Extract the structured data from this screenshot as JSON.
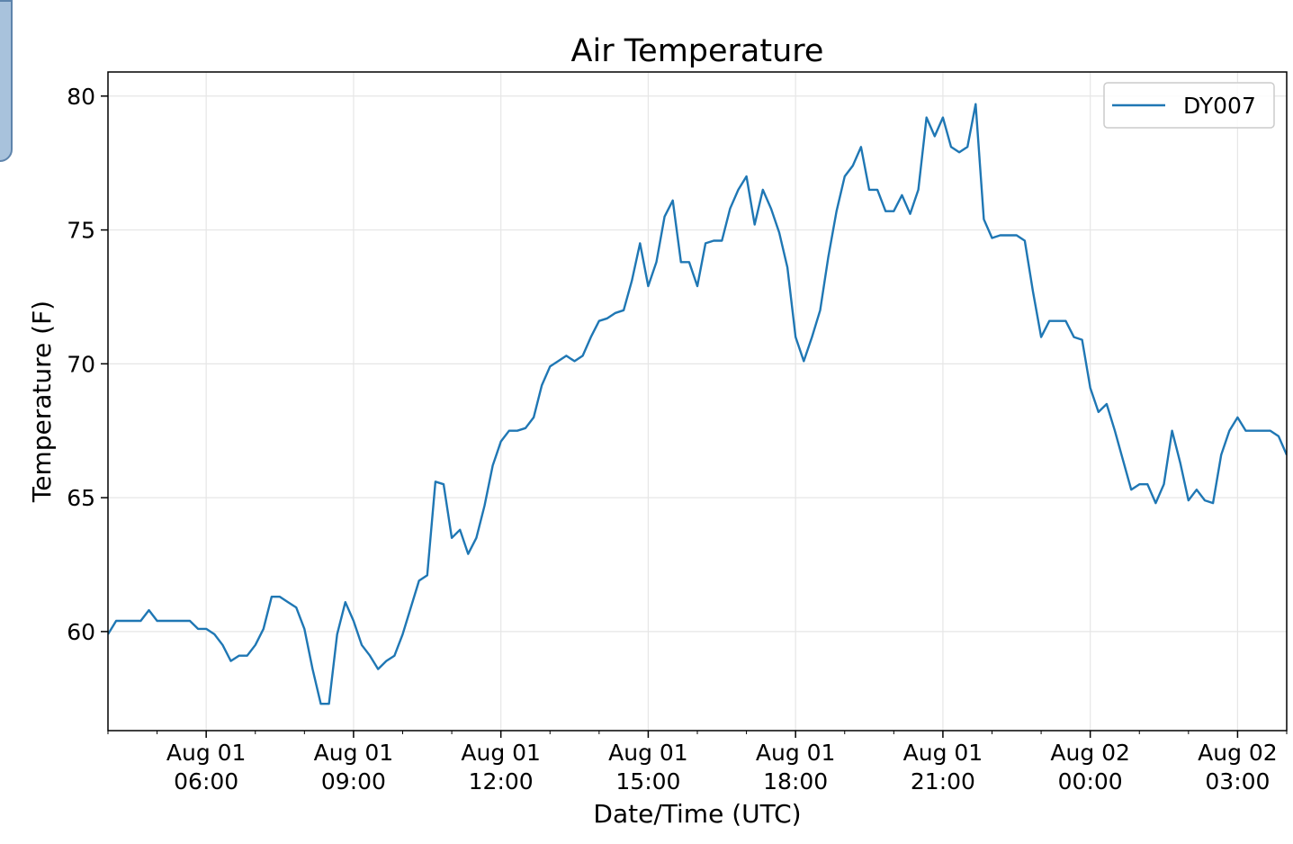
{
  "chart_data": {
    "type": "line",
    "title": "Air Temperature",
    "xlabel": "Date/Time (UTC)",
    "ylabel": "Temperature (F)",
    "x_unit": "hours",
    "xlim": [
      "2019-08-01 04:00",
      "2019-08-02 04:00"
    ],
    "ylim": [
      56.3,
      80.9
    ],
    "grid": true,
    "legend_position": "top-right",
    "x_ticks": [
      {
        "label1": "Aug 01",
        "label2": "06:00",
        "x": "2019-08-01 06:00"
      },
      {
        "label1": "Aug 01",
        "label2": "09:00",
        "x": "2019-08-01 09:00"
      },
      {
        "label1": "Aug 01",
        "label2": "12:00",
        "x": "2019-08-01 12:00"
      },
      {
        "label1": "Aug 01",
        "label2": "15:00",
        "x": "2019-08-01 15:00"
      },
      {
        "label1": "Aug 01",
        "label2": "18:00",
        "x": "2019-08-01 18:00"
      },
      {
        "label1": "Aug 01",
        "label2": "21:00",
        "x": "2019-08-01 21:00"
      },
      {
        "label1": "Aug 02",
        "label2": "00:00",
        "x": "2019-08-02 00:00"
      },
      {
        "label1": "Aug 02",
        "label2": "03:00",
        "x": "2019-08-02 03:00"
      }
    ],
    "y_ticks": [
      {
        "label": "60",
        "value": 60
      },
      {
        "label": "65",
        "value": 65
      },
      {
        "label": "70",
        "value": 70
      },
      {
        "label": "75",
        "value": 75
      },
      {
        "label": "80",
        "value": 80
      }
    ],
    "series": [
      {
        "name": "DY007",
        "color": "#1f77b4",
        "x": [
          "2019-08-01 04:00",
          "2019-08-01 04:10",
          "2019-08-01 04:20",
          "2019-08-01 04:30",
          "2019-08-01 04:40",
          "2019-08-01 04:50",
          "2019-08-01 05:00",
          "2019-08-01 05:10",
          "2019-08-01 05:20",
          "2019-08-01 05:30",
          "2019-08-01 05:40",
          "2019-08-01 05:50",
          "2019-08-01 06:00",
          "2019-08-01 06:10",
          "2019-08-01 06:20",
          "2019-08-01 06:30",
          "2019-08-01 06:40",
          "2019-08-01 06:50",
          "2019-08-01 07:00",
          "2019-08-01 07:10",
          "2019-08-01 07:20",
          "2019-08-01 07:30",
          "2019-08-01 07:40",
          "2019-08-01 07:50",
          "2019-08-01 08:00",
          "2019-08-01 08:10",
          "2019-08-01 08:20",
          "2019-08-01 08:30",
          "2019-08-01 08:40",
          "2019-08-01 08:50",
          "2019-08-01 09:00",
          "2019-08-01 09:10",
          "2019-08-01 09:20",
          "2019-08-01 09:30",
          "2019-08-01 09:40",
          "2019-08-01 09:50",
          "2019-08-01 10:00",
          "2019-08-01 10:10",
          "2019-08-01 10:20",
          "2019-08-01 10:30",
          "2019-08-01 10:40",
          "2019-08-01 10:50",
          "2019-08-01 11:00",
          "2019-08-01 11:10",
          "2019-08-01 11:20",
          "2019-08-01 11:30",
          "2019-08-01 11:40",
          "2019-08-01 11:50",
          "2019-08-01 12:00",
          "2019-08-01 12:10",
          "2019-08-01 12:20",
          "2019-08-01 12:30",
          "2019-08-01 12:40",
          "2019-08-01 12:50",
          "2019-08-01 13:00",
          "2019-08-01 13:10",
          "2019-08-01 13:20",
          "2019-08-01 13:30",
          "2019-08-01 13:40",
          "2019-08-01 13:50",
          "2019-08-01 14:00",
          "2019-08-01 14:10",
          "2019-08-01 14:20",
          "2019-08-01 14:30",
          "2019-08-01 14:40",
          "2019-08-01 14:50",
          "2019-08-01 15:00",
          "2019-08-01 15:10",
          "2019-08-01 15:20",
          "2019-08-01 15:30",
          "2019-08-01 15:40",
          "2019-08-01 15:50",
          "2019-08-01 16:00",
          "2019-08-01 16:10",
          "2019-08-01 16:20",
          "2019-08-01 16:30",
          "2019-08-01 16:40",
          "2019-08-01 16:50",
          "2019-08-01 17:00",
          "2019-08-01 17:10",
          "2019-08-01 17:20",
          "2019-08-01 17:30",
          "2019-08-01 17:40",
          "2019-08-01 17:50",
          "2019-08-01 18:00",
          "2019-08-01 18:10",
          "2019-08-01 18:20",
          "2019-08-01 18:30",
          "2019-08-01 18:40",
          "2019-08-01 18:50",
          "2019-08-01 19:00",
          "2019-08-01 19:10",
          "2019-08-01 19:20",
          "2019-08-01 19:30",
          "2019-08-01 19:40",
          "2019-08-01 19:50",
          "2019-08-01 20:00",
          "2019-08-01 20:10",
          "2019-08-01 20:20",
          "2019-08-01 20:30",
          "2019-08-01 20:40",
          "2019-08-01 20:50",
          "2019-08-01 21:00",
          "2019-08-01 21:10",
          "2019-08-01 21:20",
          "2019-08-01 21:30",
          "2019-08-01 21:40",
          "2019-08-01 21:50",
          "2019-08-01 22:00",
          "2019-08-01 22:10",
          "2019-08-01 22:20",
          "2019-08-01 22:30",
          "2019-08-01 22:40",
          "2019-08-01 22:50",
          "2019-08-01 23:00",
          "2019-08-01 23:10",
          "2019-08-01 23:20",
          "2019-08-01 23:30",
          "2019-08-01 23:40",
          "2019-08-01 23:50",
          "2019-08-02 00:00",
          "2019-08-02 00:10",
          "2019-08-02 00:20",
          "2019-08-02 00:30",
          "2019-08-02 00:40",
          "2019-08-02 00:50",
          "2019-08-02 01:00",
          "2019-08-02 01:10",
          "2019-08-02 01:20",
          "2019-08-02 01:30",
          "2019-08-02 01:40",
          "2019-08-02 01:50",
          "2019-08-02 02:00",
          "2019-08-02 02:10",
          "2019-08-02 02:20",
          "2019-08-02 02:30",
          "2019-08-02 02:40",
          "2019-08-02 02:50",
          "2019-08-02 03:00",
          "2019-08-02 03:10",
          "2019-08-02 03:20",
          "2019-08-02 03:30",
          "2019-08-02 03:40",
          "2019-08-02 03:50",
          "2019-08-02 04:00"
        ],
        "values": [
          59.9,
          60.4,
          60.4,
          60.4,
          60.4,
          60.8,
          60.4,
          60.4,
          60.4,
          60.4,
          60.4,
          60.1,
          60.1,
          59.9,
          59.5,
          58.9,
          59.1,
          59.1,
          59.5,
          60.1,
          61.3,
          61.3,
          61.1,
          60.9,
          60.1,
          58.6,
          57.3,
          57.3,
          59.9,
          61.1,
          60.4,
          59.5,
          59.1,
          58.6,
          58.9,
          59.1,
          59.9,
          60.9,
          61.9,
          62.1,
          65.6,
          65.5,
          63.5,
          63.8,
          62.9,
          63.5,
          64.7,
          66.2,
          67.1,
          67.5,
          67.5,
          67.6,
          68.0,
          69.2,
          69.9,
          70.1,
          70.3,
          70.1,
          70.3,
          71.0,
          71.6,
          71.7,
          71.9,
          72.0,
          73.1,
          74.5,
          72.9,
          73.8,
          75.5,
          76.1,
          73.8,
          73.8,
          72.9,
          74.5,
          74.6,
          74.6,
          75.8,
          76.5,
          77.0,
          75.2,
          76.5,
          75.8,
          74.9,
          73.6,
          71.0,
          70.1,
          71.0,
          72.0,
          74.0,
          75.7,
          77.0,
          77.4,
          78.1,
          76.5,
          76.5,
          75.7,
          75.7,
          76.3,
          75.6,
          76.5,
          79.2,
          78.5,
          79.2,
          78.1,
          77.9,
          78.1,
          79.7,
          75.4,
          74.7,
          74.8,
          74.8,
          74.8,
          74.6,
          72.7,
          71.0,
          71.6,
          71.6,
          71.6,
          71.0,
          70.9,
          69.1,
          68.2,
          68.5,
          67.5,
          66.4,
          65.3,
          65.5,
          65.5,
          64.8,
          65.5,
          67.5,
          66.3,
          64.9,
          65.3,
          64.9,
          64.8,
          66.6,
          67.5,
          68.0,
          67.5,
          67.5,
          67.5,
          67.5,
          67.3,
          66.6
        ]
      }
    ]
  }
}
